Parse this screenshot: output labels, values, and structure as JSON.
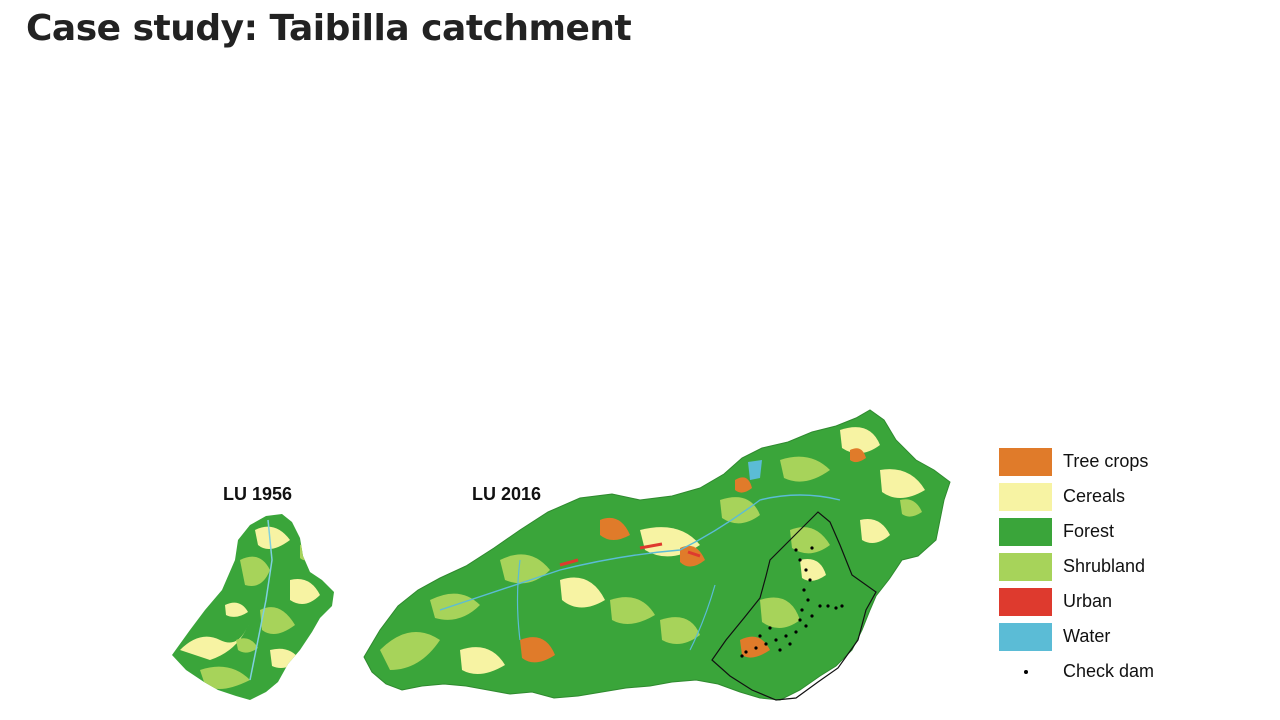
{
  "title": "Case study: Taibilla catchment",
  "maps": [
    {
      "label": "LU 1956"
    },
    {
      "label": "LU 2016"
    }
  ],
  "legend": [
    {
      "label": "Tree crops",
      "color": "#e07b2a"
    },
    {
      "label": "Cereals",
      "color": "#f7f3a3"
    },
    {
      "label": "Forest",
      "color": "#3aa53a"
    },
    {
      "label": "Shrubland",
      "color": "#a7d35a"
    },
    {
      "label": "Urban",
      "color": "#de3a2e"
    },
    {
      "label": "Water",
      "color": "#5bbcd6"
    },
    {
      "label": "Check dam",
      "color": "#000000",
      "symbol": "dot"
    }
  ]
}
